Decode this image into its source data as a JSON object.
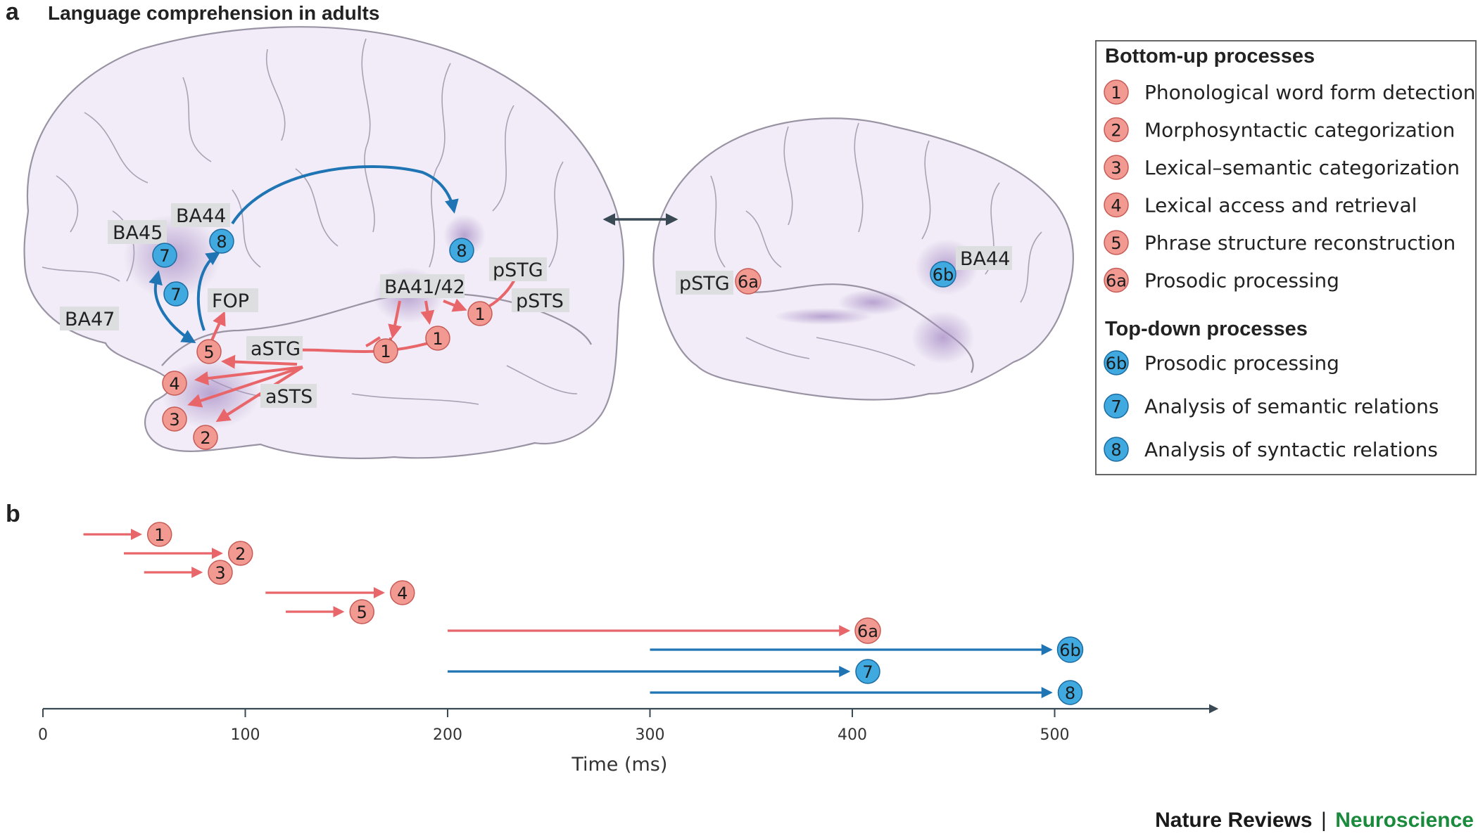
{
  "panel_a": {
    "letter": "a",
    "title": "Language comprehension in adults",
    "regions": {
      "ba45": "BA45",
      "ba44": "BA44",
      "ba47": "BA47",
      "fop": "FOP",
      "astg": "aSTG",
      "asts": "aSTS",
      "ba41_42": "BA41/42",
      "pstg": "pSTG",
      "psts": "pSTS",
      "rh_pstg": "pSTG",
      "rh_ba44": "BA44"
    },
    "badges": {
      "n1": "1",
      "n2": "2",
      "n3": "3",
      "n4": "4",
      "n5": "5",
      "n6a": "6a",
      "n6b": "6b",
      "n7": "7",
      "n8": "8"
    }
  },
  "legend": {
    "bottom_up_title": "Bottom-up processes",
    "top_down_title": "Top-down processes",
    "bottom_up": [
      {
        "id": "1",
        "label": "Phonological word form detection"
      },
      {
        "id": "2",
        "label": "Morphosyntactic categorization"
      },
      {
        "id": "3",
        "label": "Lexical–semantic categorization"
      },
      {
        "id": "4",
        "label": "Lexical access and retrieval"
      },
      {
        "id": "5",
        "label": "Phrase structure reconstruction"
      },
      {
        "id": "6a",
        "label": "Prosodic processing"
      }
    ],
    "top_down": [
      {
        "id": "6b",
        "label": "Prosodic processing"
      },
      {
        "id": "7",
        "label": "Analysis of semantic relations"
      },
      {
        "id": "8",
        "label": "Analysis of syntactic relations"
      }
    ]
  },
  "chart_data": {
    "type": "timeline",
    "panel_letter": "b",
    "xlabel": "Time (ms)",
    "xlim": [
      0,
      580
    ],
    "ticks": [
      0,
      100,
      200,
      300,
      400,
      500
    ],
    "colors": {
      "bottom_up": "#e8666a",
      "top_down": "#1f74b4",
      "badge_red": "#f29a92",
      "badge_blue": "#3fa9e0"
    },
    "series": [
      {
        "name": "1",
        "start": 20,
        "end": 50,
        "direction": "bottom-up"
      },
      {
        "name": "2",
        "start": 40,
        "end": 90,
        "direction": "bottom-up"
      },
      {
        "name": "3",
        "start": 50,
        "end": 80,
        "direction": "bottom-up"
      },
      {
        "name": "4",
        "start": 110,
        "end": 170,
        "direction": "bottom-up"
      },
      {
        "name": "5",
        "start": 120,
        "end": 150,
        "direction": "bottom-up"
      },
      {
        "name": "6a",
        "start": 200,
        "end": 400,
        "direction": "bottom-up"
      },
      {
        "name": "6b",
        "start": 300,
        "end": 500,
        "direction": "top-down"
      },
      {
        "name": "7",
        "start": 200,
        "end": 400,
        "direction": "top-down"
      },
      {
        "name": "8",
        "start": 300,
        "end": 500,
        "direction": "top-down"
      }
    ]
  },
  "credit": {
    "journal": "Nature Reviews",
    "separator": "|",
    "section": "Neuroscience"
  }
}
